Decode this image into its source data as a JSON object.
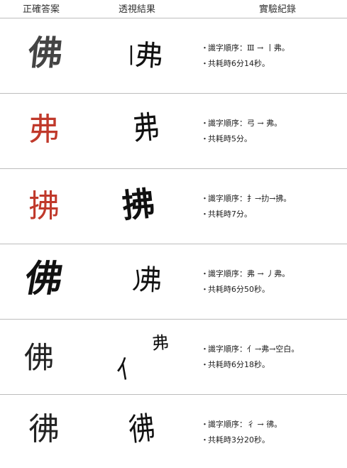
{
  "header": {
    "col_answer": "正確答案",
    "col_seen": "透視結果",
    "col_record": "實驗紀錄"
  },
  "rows": [
    {
      "answer_char": "佛",
      "answer_color": "#444444",
      "seen": [
        "丨",
        "弗"
      ],
      "seq_label": "識字順序：",
      "seq": "Ⅲ → 丨弗。",
      "time": "共耗時6分14秒。"
    },
    {
      "answer_char": "弗",
      "answer_color": "#c0392b",
      "seen": [
        "弗"
      ],
      "seq_label": "識字順序：",
      "seq": "弓 → 弗。",
      "time": "共耗時5分。"
    },
    {
      "answer_char": "拂",
      "answer_color": "#c0392b",
      "seen": [
        "拂"
      ],
      "seq_label": "識字順序：",
      "seq": "扌→扐→拂。",
      "time": "共耗時7分。"
    },
    {
      "answer_char": "佛",
      "answer_color": "#111111",
      "seen": [
        "丿",
        "弗"
      ],
      "seq_label": "識字順序：",
      "seq": "弗 → 丿弗。",
      "time": "共耗時6分50秒。"
    },
    {
      "answer_char": "佛",
      "answer_color": "#222222",
      "seen": [
        "弗",
        "亻"
      ],
      "seq_label": "識字順序：",
      "seq": "亻→弗→空白。",
      "time": "共耗時6分18秒。"
    },
    {
      "answer_char": "彿",
      "answer_color": "#222222",
      "seen": [
        "彿"
      ],
      "seq_label": "識字順序：",
      "seq": "彳 → 彿。",
      "time": "共耗時3分20秒。"
    }
  ],
  "bullet": "・"
}
